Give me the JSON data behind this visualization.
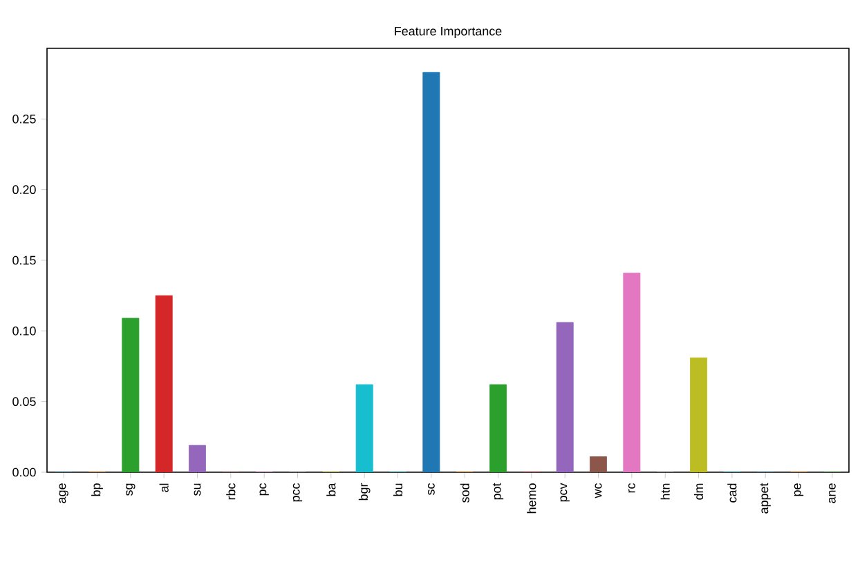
{
  "chart_data": {
    "type": "bar",
    "title": "Feature Importance",
    "categories": [
      "age",
      "bp",
      "sg",
      "al",
      "su",
      "rbc",
      "pc",
      "pcc",
      "ba",
      "bgr",
      "bu",
      "sc",
      "sod",
      "pot",
      "hemo",
      "pcv",
      "wc",
      "rc",
      "htn",
      "dm",
      "cad",
      "appet",
      "pe",
      "ane"
    ],
    "values": [
      0,
      0,
      0.109,
      0.125,
      0.019,
      0,
      0,
      0,
      0,
      0.062,
      0,
      0.283,
      0,
      0.062,
      0,
      0.106,
      0.011,
      0.141,
      0,
      0.081,
      0,
      0,
      0,
      0
    ],
    "colors": [
      "#1f77b4",
      "#ff7f0e",
      "#2ca02c",
      "#d62728",
      "#9467bd",
      "#8c564b",
      "#e377c2",
      "#7f7f7f",
      "#bcbd22",
      "#17becf",
      "#17becf",
      "#1f77b4",
      "#ff7f0e",
      "#2ca02c",
      "#d62728",
      "#9467bd",
      "#8c564b",
      "#e377c2",
      "#7f7f7f",
      "#bcbd22",
      "#17becf",
      "#1f77b4",
      "#ff7f0e",
      "#2ca02c"
    ],
    "ylim": [
      0,
      0.3
    ],
    "yticks": [
      {
        "value": 0,
        "label": "0.00"
      },
      {
        "value": 0.05,
        "label": "0.05"
      },
      {
        "value": 0.1,
        "label": "0.10"
      },
      {
        "value": 0.15,
        "label": "0.15"
      },
      {
        "value": 0.2,
        "label": "0.20"
      },
      {
        "value": 0.25,
        "label": "0.25"
      }
    ]
  }
}
